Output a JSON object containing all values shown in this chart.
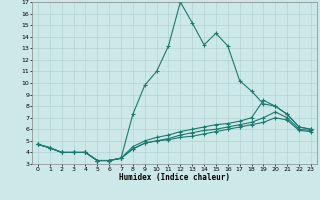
{
  "title": "",
  "xlabel": "Humidex (Indice chaleur)",
  "ylabel": "",
  "background_color": "#cde8e8",
  "grid_color": "#b0cccc",
  "line_color": "#1a7a6e",
  "xlim": [
    -0.5,
    23.5
  ],
  "ylim": [
    3,
    17
  ],
  "xticks": [
    0,
    1,
    2,
    3,
    4,
    5,
    6,
    7,
    8,
    9,
    10,
    11,
    12,
    13,
    14,
    15,
    16,
    17,
    18,
    19,
    20,
    21,
    22,
    23
  ],
  "yticks": [
    3,
    4,
    5,
    6,
    7,
    8,
    9,
    10,
    11,
    12,
    13,
    14,
    15,
    16,
    17
  ],
  "lines": [
    {
      "x": [
        0,
        1,
        2,
        3,
        4,
        5,
        6,
        7,
        8,
        9,
        10,
        11,
        12,
        13,
        14,
        15,
        16,
        17,
        18,
        19,
        20,
        21,
        22,
        23
      ],
      "y": [
        4.7,
        4.4,
        4.0,
        4.0,
        4.0,
        3.3,
        3.3,
        3.5,
        7.3,
        9.8,
        11.0,
        13.2,
        17.0,
        15.2,
        13.3,
        14.3,
        13.2,
        10.2,
        9.3,
        8.2,
        8.0,
        7.3,
        6.2,
        6.0
      ]
    },
    {
      "x": [
        0,
        1,
        2,
        3,
        4,
        5,
        6,
        7,
        8,
        9,
        10,
        11,
        12,
        13,
        14,
        15,
        16,
        17,
        18,
        19,
        20,
        21,
        22,
        23
      ],
      "y": [
        4.7,
        4.4,
        4.0,
        4.0,
        4.0,
        3.3,
        3.3,
        3.5,
        4.5,
        5.0,
        5.3,
        5.5,
        5.8,
        6.0,
        6.2,
        6.4,
        6.5,
        6.7,
        7.0,
        8.5,
        8.0,
        7.3,
        6.2,
        6.0
      ]
    },
    {
      "x": [
        0,
        1,
        2,
        3,
        4,
        5,
        6,
        7,
        8,
        9,
        10,
        11,
        12,
        13,
        14,
        15,
        16,
        17,
        18,
        19,
        20,
        21,
        22,
        23
      ],
      "y": [
        4.7,
        4.4,
        4.0,
        4.0,
        4.0,
        3.3,
        3.3,
        3.5,
        4.3,
        4.8,
        5.0,
        5.2,
        5.5,
        5.7,
        5.9,
        6.0,
        6.2,
        6.4,
        6.6,
        7.0,
        7.5,
        7.0,
        6.0,
        5.9
      ]
    },
    {
      "x": [
        0,
        1,
        2,
        3,
        4,
        5,
        6,
        7,
        8,
        9,
        10,
        11,
        12,
        13,
        14,
        15,
        16,
        17,
        18,
        19,
        20,
        21,
        22,
        23
      ],
      "y": [
        4.7,
        4.4,
        4.0,
        4.0,
        4.0,
        3.3,
        3.3,
        3.5,
        4.3,
        4.8,
        5.0,
        5.1,
        5.3,
        5.4,
        5.6,
        5.8,
        6.0,
        6.2,
        6.4,
        6.6,
        7.0,
        6.8,
        5.9,
        5.8
      ]
    }
  ]
}
